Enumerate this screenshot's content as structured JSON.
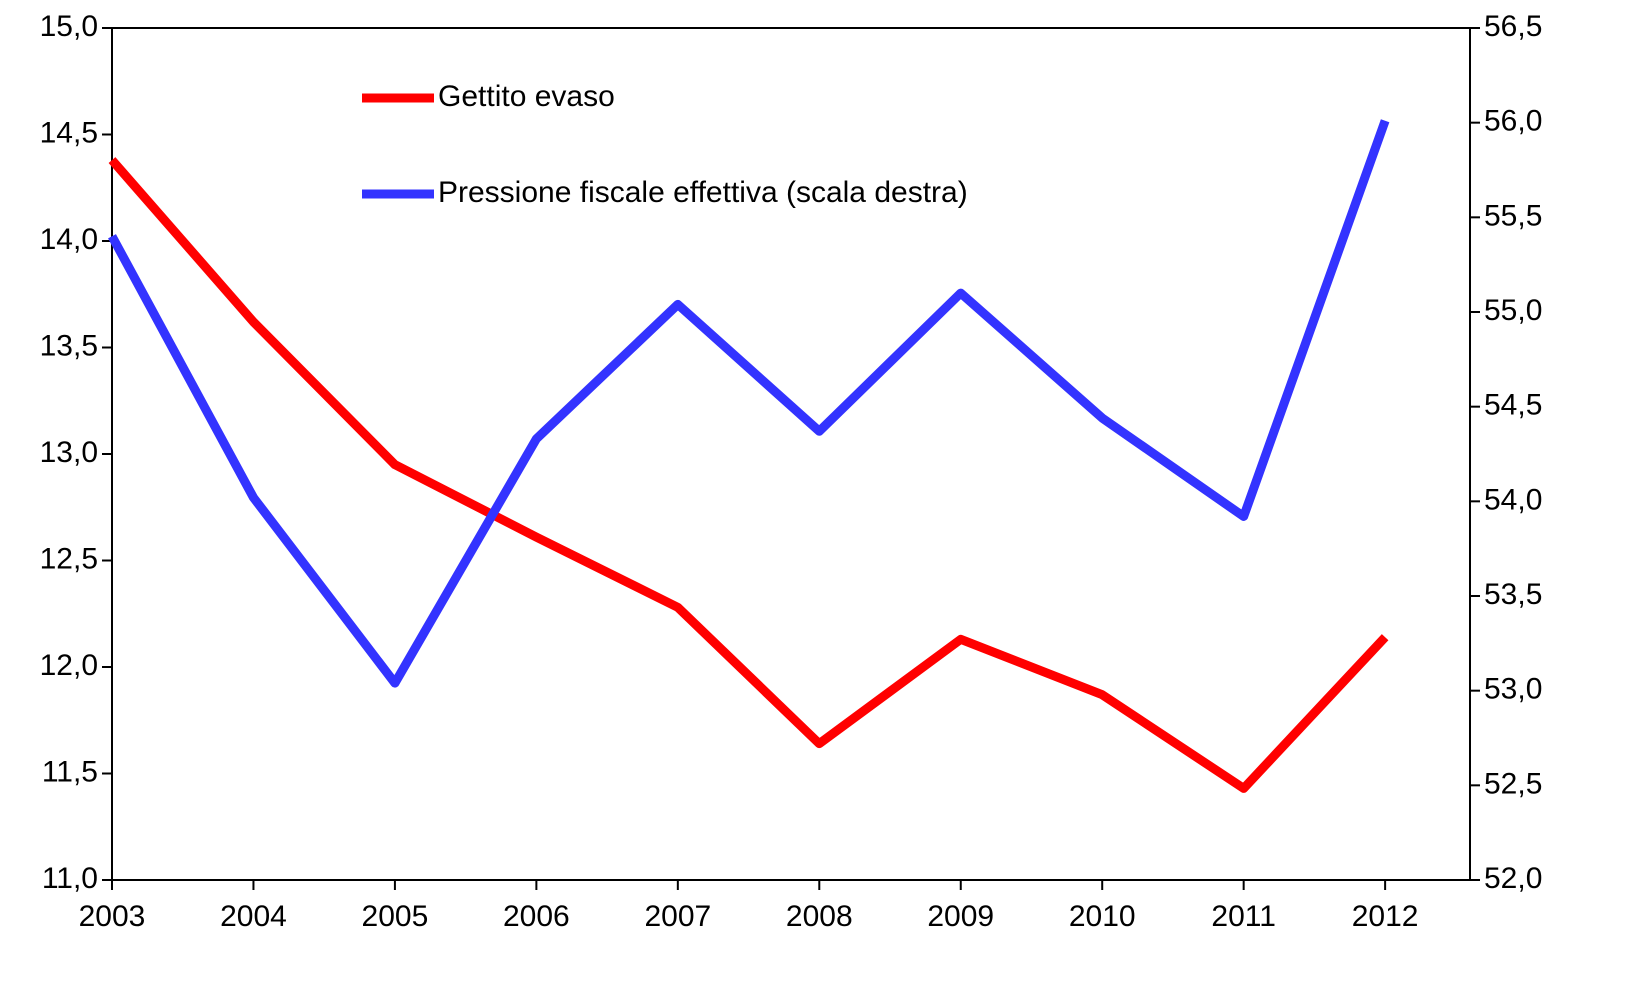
{
  "chart_data": {
    "type": "line",
    "x": [
      2003,
      2004,
      2005,
      2006,
      2007,
      2008,
      2009,
      2010,
      2011,
      2012
    ],
    "xlim": [
      2003,
      2012.6
    ],
    "xticks": [
      2003,
      2004,
      2005,
      2006,
      2007,
      2008,
      2009,
      2010,
      2011,
      2012
    ],
    "ylim": [
      11,
      15
    ],
    "yticks": [
      {
        "value": 11,
        "label": "11,0"
      },
      {
        "value": 11.5,
        "label": "11,5"
      },
      {
        "value": 12,
        "label": "12,0"
      },
      {
        "value": 12.5,
        "label": "12,5"
      },
      {
        "value": 13,
        "label": "13,0"
      },
      {
        "value": 13.5,
        "label": "13,5"
      },
      {
        "value": 14,
        "label": "14,0"
      },
      {
        "value": 14.5,
        "label": "14,5"
      },
      {
        "value": 15,
        "label": "15,0"
      }
    ],
    "y2lim": [
      52,
      56.5
    ],
    "y2ticks": [
      {
        "value": 52,
        "label": "52,0"
      },
      {
        "value": 52.5,
        "label": "52,5"
      },
      {
        "value": 53,
        "label": "53,0"
      },
      {
        "value": 53.5,
        "label": "53,5"
      },
      {
        "value": 54,
        "label": "54,0"
      },
      {
        "value": 54.5,
        "label": "54,5"
      },
      {
        "value": 55,
        "label": "55,0"
      },
      {
        "value": 55.5,
        "label": "55,5"
      },
      {
        "value": 56,
        "label": "56,0"
      },
      {
        "value": 56.5,
        "label": "56,5"
      }
    ],
    "legend": "upper-left",
    "series": [
      {
        "name": "Gettito evaso",
        "color": "#ff0000",
        "values": [
          14.38,
          13.62,
          12.95,
          12.61,
          12.28,
          11.64,
          12.13,
          11.87,
          11.43,
          12.14
        ]
      },
      {
        "name": "Pressione fiscale effettiva (scala destra)",
        "color": "#3333ff",
        "axis": "y2",
        "values": [
          55.4,
          54.02,
          53.04,
          54.33,
          55.04,
          54.37,
          55.1,
          54.44,
          53.92,
          56.01
        ]
      }
    ]
  }
}
